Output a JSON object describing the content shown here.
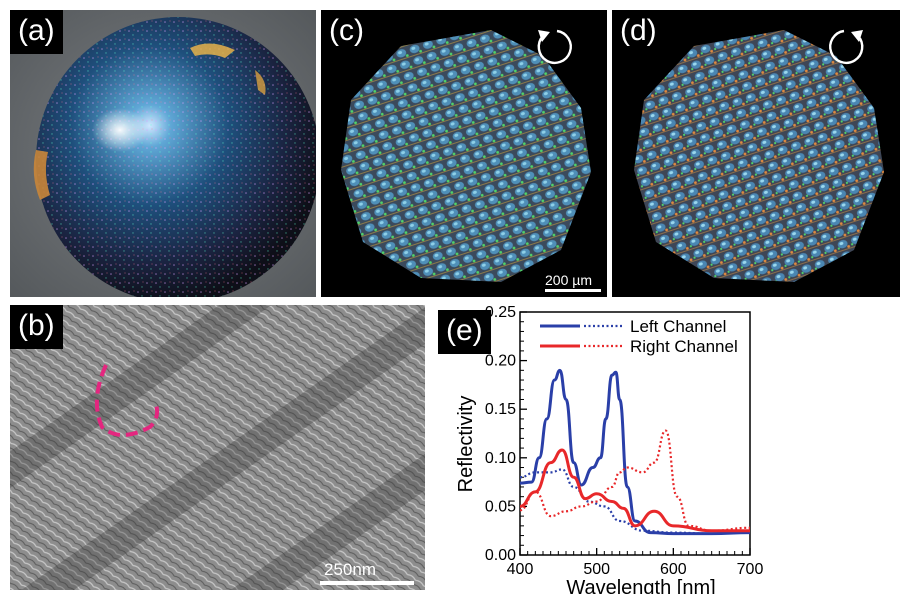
{
  "panels": {
    "a": {
      "label": "(a)"
    },
    "b": {
      "label": "(b)",
      "scale_bar": "250nm"
    },
    "c": {
      "label": "(c)",
      "scale_bar": "200 µm",
      "rotation_icon": "counterclockwise-arrow-icon"
    },
    "d": {
      "label": "(d)",
      "rotation_icon": "clockwise-arrow-icon"
    },
    "e": {
      "label": "(e)"
    }
  },
  "chart_data": {
    "type": "line",
    "title": "",
    "xlabel": "Wavelength [nm]",
    "ylabel": "Reflectivity",
    "xlim": [
      400,
      700
    ],
    "ylim": [
      0.0,
      0.25
    ],
    "xticks": [
      "400",
      "500",
      "600",
      "700"
    ],
    "yticks": [
      "0.00",
      "0.05",
      "0.10",
      "0.15",
      "0.20",
      "0.25"
    ],
    "legend_position": "top-right",
    "legend": [
      "Left  Channel",
      "Right Channel"
    ],
    "colors": {
      "left": "#2a3fa8",
      "right": "#e8282a"
    },
    "series": [
      {
        "name": "Left  Channel",
        "style": "solid",
        "color": "#2a3fa8",
        "x": [
          400,
          415,
          425,
          435,
          445,
          452,
          460,
          470,
          480,
          495,
          505,
          512,
          520,
          525,
          530,
          540,
          550,
          570,
          600,
          650,
          700
        ],
        "y": [
          0.074,
          0.075,
          0.1,
          0.14,
          0.18,
          0.19,
          0.16,
          0.095,
          0.072,
          0.09,
          0.1,
          0.14,
          0.185,
          0.188,
          0.16,
          0.07,
          0.035,
          0.023,
          0.022,
          0.022,
          0.023
        ]
      },
      {
        "name": "Left  Channel",
        "style": "dotted",
        "color": "#2a3fa8",
        "x": [
          400,
          420,
          440,
          455,
          470,
          490,
          510,
          530,
          560,
          600,
          650,
          700
        ],
        "y": [
          0.08,
          0.085,
          0.085,
          0.088,
          0.07,
          0.055,
          0.05,
          0.035,
          0.025,
          0.023,
          0.022,
          0.023
        ]
      },
      {
        "name": "Right Channel",
        "style": "solid",
        "color": "#e8282a",
        "x": [
          400,
          420,
          440,
          455,
          470,
          485,
          500,
          520,
          535,
          550,
          575,
          600,
          650,
          700
        ],
        "y": [
          0.05,
          0.065,
          0.095,
          0.108,
          0.08,
          0.058,
          0.063,
          0.055,
          0.048,
          0.03,
          0.045,
          0.03,
          0.025,
          0.025
        ]
      },
      {
        "name": "Right Channel",
        "style": "dotted",
        "color": "#e8282a",
        "x": [
          400,
          420,
          440,
          460,
          480,
          500,
          520,
          530,
          540,
          560,
          575,
          590,
          605,
          620,
          650,
          700
        ],
        "y": [
          0.046,
          0.065,
          0.04,
          0.045,
          0.05,
          0.055,
          0.07,
          0.085,
          0.09,
          0.085,
          0.095,
          0.128,
          0.06,
          0.03,
          0.025,
          0.028
        ]
      }
    ]
  }
}
